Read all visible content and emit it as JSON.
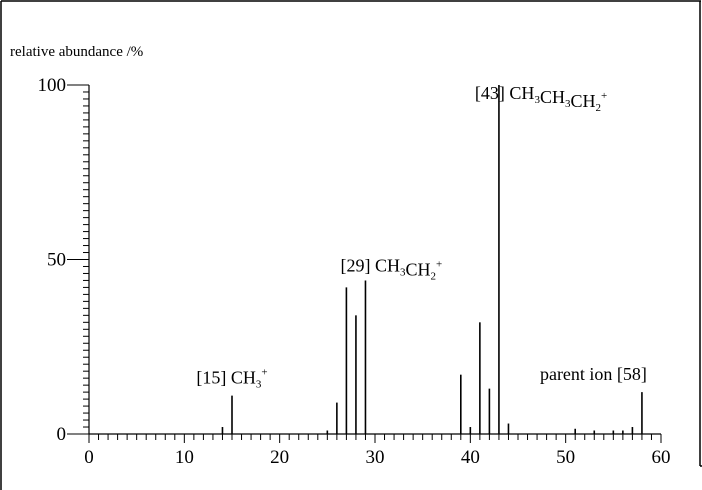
{
  "chart_data": {
    "type": "bar",
    "title": "",
    "ylabel": "relative abundance /%",
    "xlabel": "",
    "xlim": [
      0,
      60
    ],
    "ylim": [
      0,
      100
    ],
    "x_ticks": [
      0,
      10,
      20,
      30,
      40,
      50,
      60
    ],
    "y_ticks": [
      0,
      50,
      100
    ],
    "grid": false,
    "peaks": [
      {
        "mz": 14,
        "value": 2
      },
      {
        "mz": 15,
        "value": 11
      },
      {
        "mz": 25,
        "value": 1
      },
      {
        "mz": 26,
        "value": 9
      },
      {
        "mz": 27,
        "value": 42
      },
      {
        "mz": 28,
        "value": 34
      },
      {
        "mz": 29,
        "value": 44
      },
      {
        "mz": 39,
        "value": 17
      },
      {
        "mz": 40,
        "value": 2
      },
      {
        "mz": 41,
        "value": 32
      },
      {
        "mz": 42,
        "value": 13
      },
      {
        "mz": 43,
        "value": 100
      },
      {
        "mz": 44,
        "value": 3
      },
      {
        "mz": 51,
        "value": 1.5
      },
      {
        "mz": 53,
        "value": 1
      },
      {
        "mz": 55,
        "value": 1
      },
      {
        "mz": 56,
        "value": 1
      },
      {
        "mz": 57,
        "value": 2
      },
      {
        "mz": 58,
        "value": 12
      }
    ],
    "annotations": [
      {
        "id": "m15",
        "mz": 15,
        "value": 11,
        "prefix": "[15] ",
        "parts": [
          [
            "CH",
            "n"
          ],
          [
            "3",
            "sub"
          ],
          [
            "+",
            "sup"
          ]
        ]
      },
      {
        "id": "m29",
        "mz": 29,
        "value": 44,
        "prefix": "[29] ",
        "parts": [
          [
            "CH",
            "n"
          ],
          [
            "3",
            "sub"
          ],
          [
            "CH",
            "n"
          ],
          [
            "2",
            "sub"
          ],
          [
            "+",
            "sup"
          ]
        ]
      },
      {
        "id": "m43",
        "mz": 43,
        "value": 100,
        "prefix": "[43] ",
        "parts": [
          [
            "CH",
            "n"
          ],
          [
            "3",
            "sub"
          ],
          [
            "CH",
            "n"
          ],
          [
            "3",
            "sub"
          ],
          [
            "CH",
            "n"
          ],
          [
            "2",
            "sub"
          ],
          [
            "+",
            "sup"
          ]
        ]
      },
      {
        "id": "m58",
        "mz": 58,
        "value": 12,
        "prefix": "parent ion [58]",
        "parts": []
      }
    ]
  }
}
